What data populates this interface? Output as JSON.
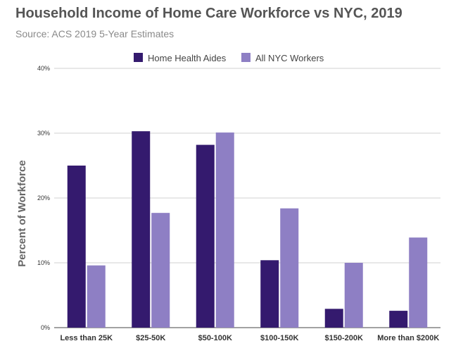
{
  "title": "Household Income of Home Care Workforce vs NYC, 2019",
  "subtitle": "Source: ACS 2019 5-Year Estimates",
  "chart_data": {
    "type": "bar",
    "categories": [
      "Less than 25K",
      "$25-50K",
      "$50-100K",
      "$100-150K",
      "$150-200K",
      "More than $200K"
    ],
    "series": [
      {
        "name": "Home Health Aides",
        "color": "#341a6e",
        "values": [
          25.0,
          30.3,
          28.2,
          10.4,
          2.9,
          2.6
        ]
      },
      {
        "name": "All NYC Workers",
        "color": "#8e7fc4",
        "values": [
          9.6,
          17.7,
          30.1,
          18.4,
          10.0,
          13.9
        ]
      }
    ],
    "ylabel": "Percent of Workforce",
    "xlabel": "",
    "ylim": [
      0,
      40
    ],
    "yticks": [
      "0%",
      "10%",
      "20%",
      "30%",
      "40%"
    ],
    "grid": true,
    "legend_position": "top"
  }
}
